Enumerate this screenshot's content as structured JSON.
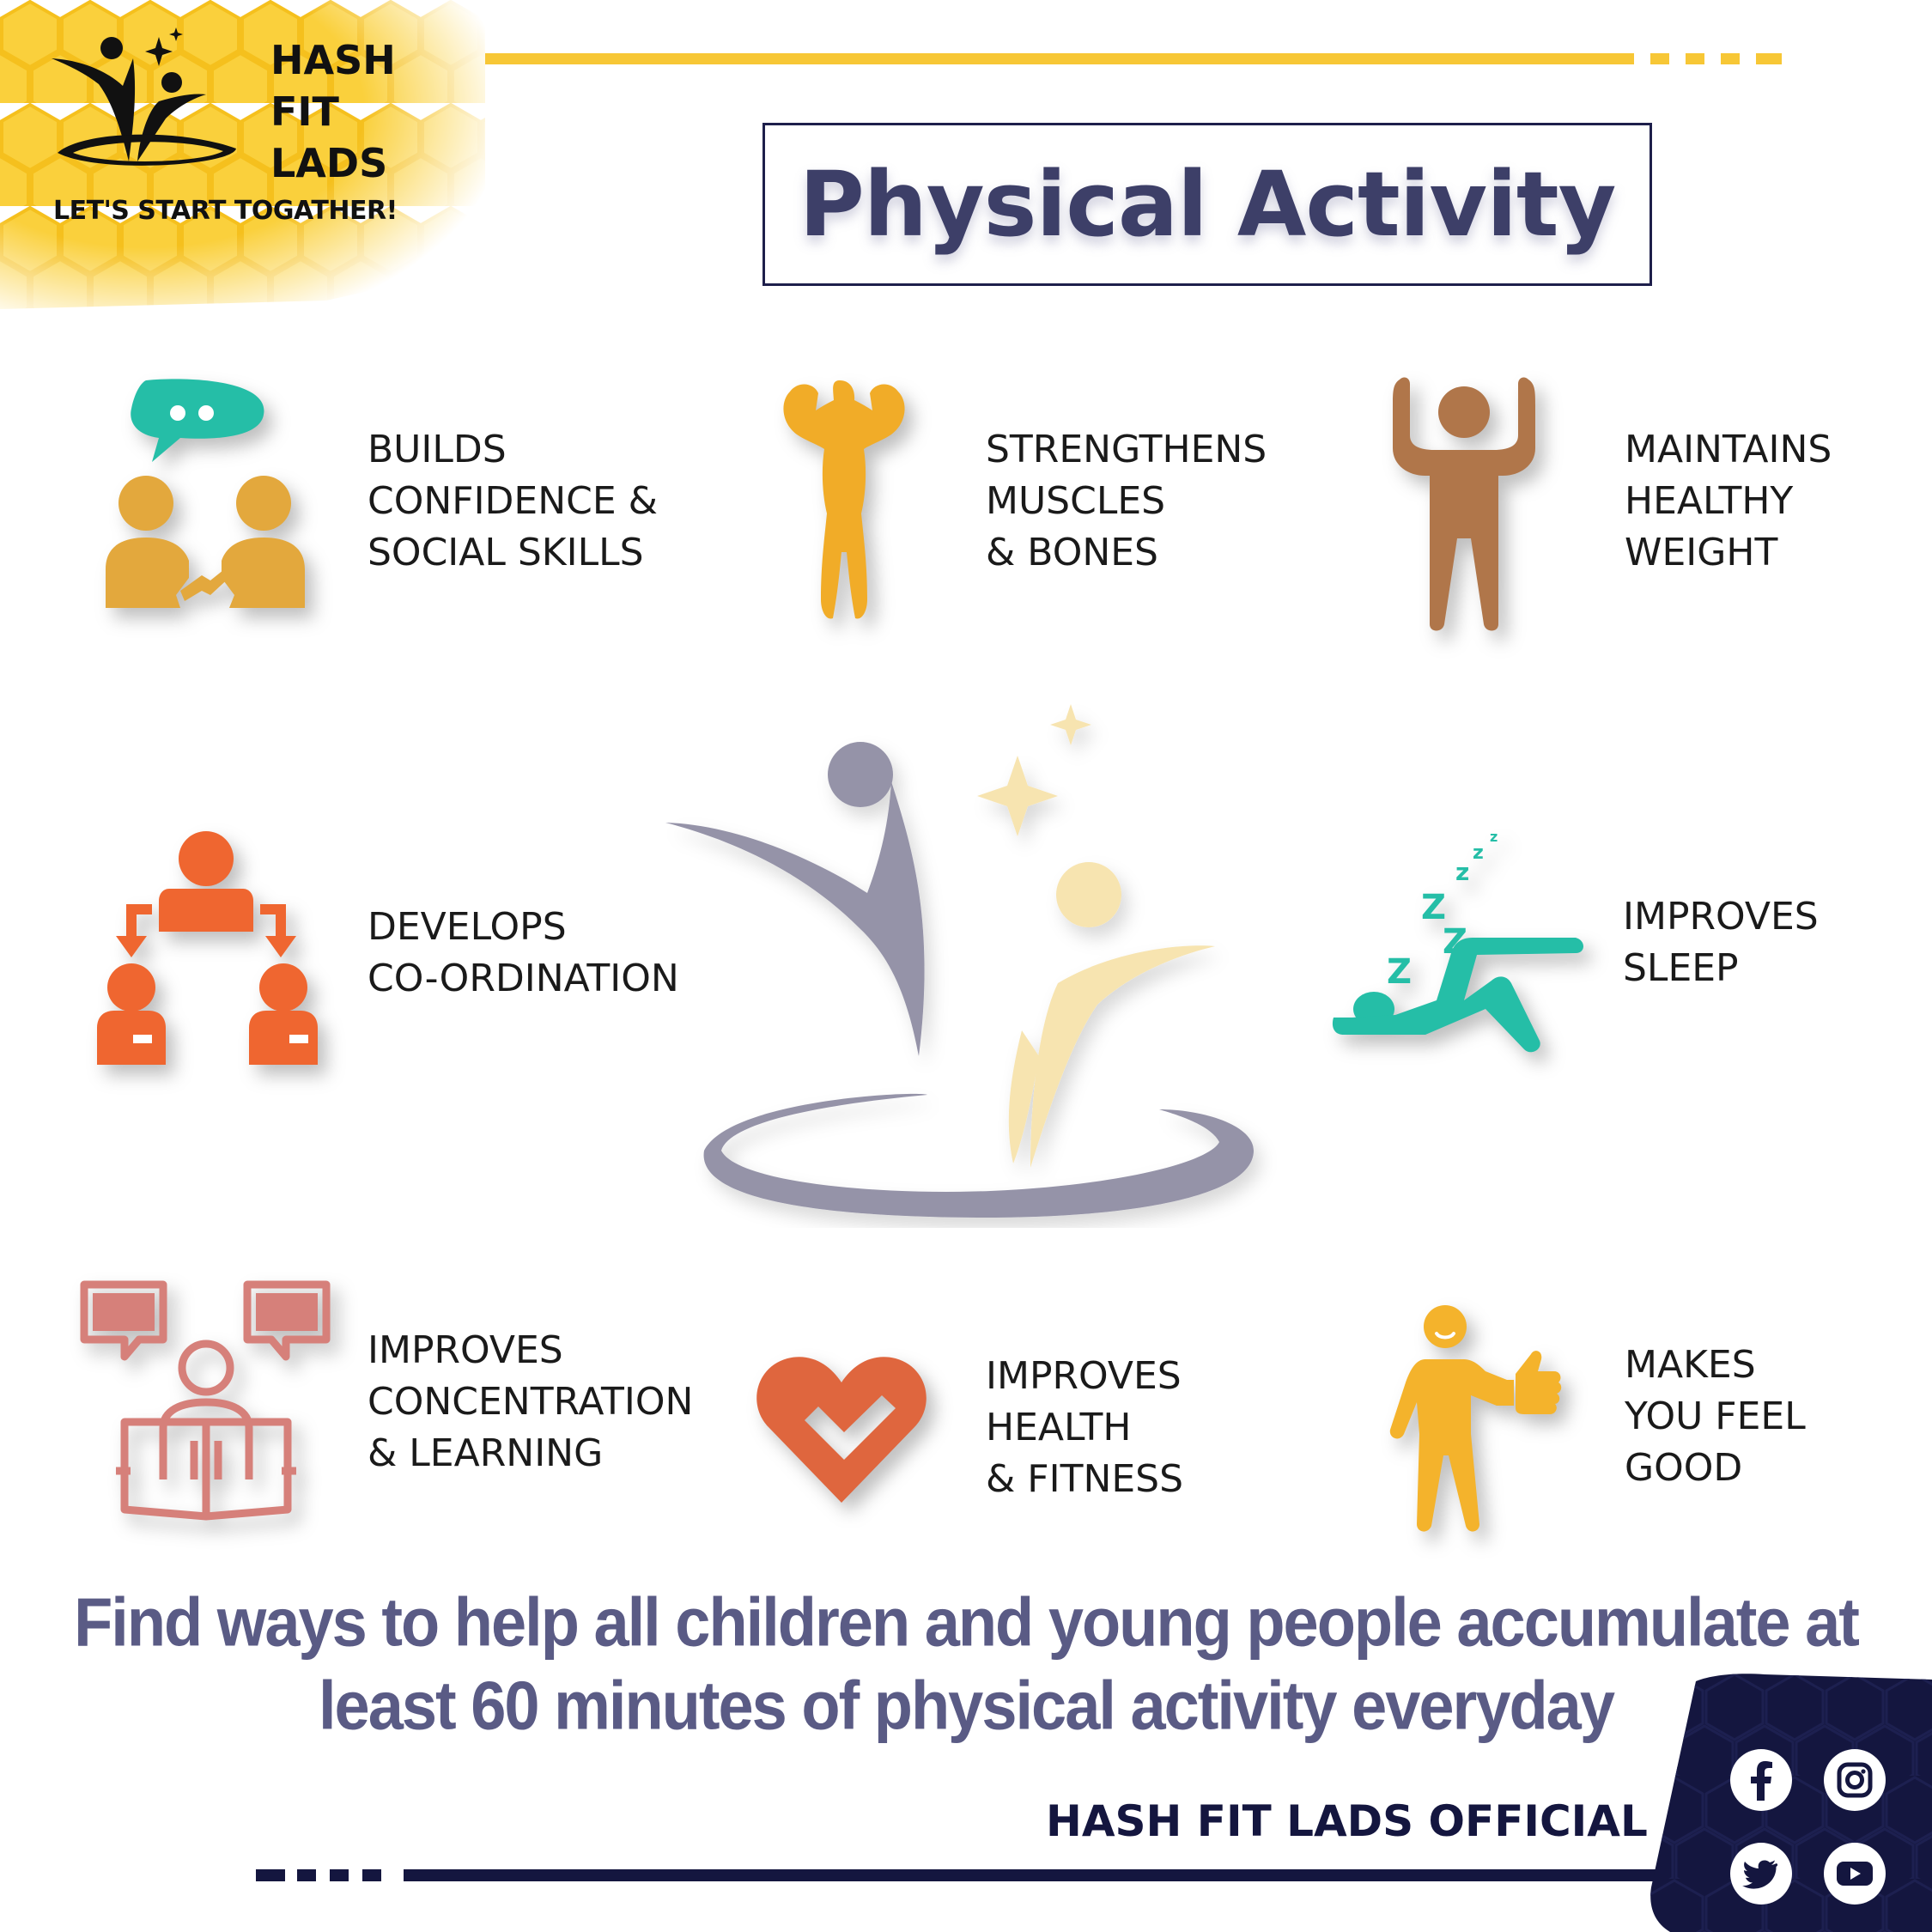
{
  "brand": {
    "line1": "HASH",
    "line2": "FIT",
    "line3": "LADS",
    "tagline": "LET'S START TOGATHER!"
  },
  "title": "Physical Activity",
  "benefits": [
    {
      "icon": "social-skills-icon",
      "lines": [
        "BUILDS",
        "CONFIDENCE &",
        "SOCIAL SKILLS"
      ]
    },
    {
      "icon": "muscle-man-icon",
      "lines": [
        "STRENGTHENS",
        "MUSCLES",
        "& BONES"
      ]
    },
    {
      "icon": "healthy-weight-icon",
      "lines": [
        "MAINTAINS",
        "HEALTHY",
        "WEIGHT"
      ]
    },
    {
      "icon": "coordination-icon",
      "lines": [
        "DEVELOPS",
        "CO-ORDINATION"
      ]
    },
    {
      "icon": "sleep-icon",
      "lines": [
        "IMPROVES",
        "SLEEP"
      ]
    },
    {
      "icon": "reading-learning-icon",
      "lines": [
        "IMPROVES",
        "CONCENTRATION",
        "& LEARNING"
      ]
    },
    {
      "icon": "heart-check-icon",
      "lines": [
        "IMPROVES",
        "HEALTH",
        "& FITNESS"
      ]
    },
    {
      "icon": "thumbs-up-person-icon",
      "lines": [
        "MAKES",
        "YOU FEEL",
        "GOOD"
      ]
    }
  ],
  "cta": {
    "line1": "Find ways to help all children and young people accumulate at",
    "line2": "least 60 minutes of physical activity everyday"
  },
  "footer": {
    "official": "HASH FIT LADS OFFICIAL",
    "social": [
      "facebook-icon",
      "instagram-icon",
      "twitter-icon",
      "youtube-icon"
    ]
  },
  "colors": {
    "honey": "#f9c623",
    "navy": "#14163f",
    "title": "#3d3f68",
    "cta": "#5a5b85",
    "accent_line": "#f7c736"
  }
}
